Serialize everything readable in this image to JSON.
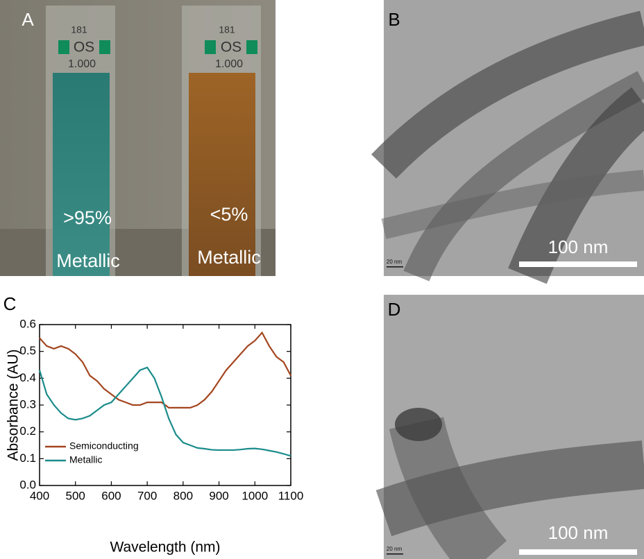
{
  "chart_data": {
    "type": "line",
    "x": [
      400,
      420,
      440,
      460,
      480,
      500,
      520,
      540,
      560,
      580,
      600,
      620,
      640,
      660,
      680,
      700,
      720,
      740,
      760,
      780,
      800,
      820,
      840,
      860,
      880,
      900,
      920,
      940,
      960,
      980,
      1000,
      1020,
      1040,
      1060,
      1080,
      1100
    ],
    "series": [
      {
        "name": "Semiconducting",
        "color": "#a3451f",
        "values": [
          0.55,
          0.52,
          0.51,
          0.52,
          0.51,
          0.49,
          0.46,
          0.41,
          0.39,
          0.36,
          0.34,
          0.32,
          0.31,
          0.3,
          0.3,
          0.31,
          0.31,
          0.31,
          0.29,
          0.29,
          0.29,
          0.29,
          0.3,
          0.32,
          0.35,
          0.39,
          0.43,
          0.46,
          0.49,
          0.52,
          0.54,
          0.57,
          0.52,
          0.48,
          0.46,
          0.41
        ]
      },
      {
        "name": "Metallic",
        "color": "#1b8b8b",
        "values": [
          0.43,
          0.34,
          0.3,
          0.27,
          0.25,
          0.245,
          0.25,
          0.26,
          0.28,
          0.3,
          0.31,
          0.34,
          0.37,
          0.4,
          0.43,
          0.44,
          0.4,
          0.33,
          0.25,
          0.19,
          0.16,
          0.15,
          0.14,
          0.137,
          0.133,
          0.132,
          0.132,
          0.132,
          0.134,
          0.137,
          0.138,
          0.135,
          0.13,
          0.125,
          0.118,
          0.11
        ]
      }
    ],
    "xlabel": "Wavelength (nm)",
    "ylabel": "Absorbance (AU)",
    "xlim": [
      400,
      1100
    ],
    "ylim": [
      0,
      0.6
    ],
    "xticks": [
      400,
      500,
      600,
      700,
      800,
      900,
      1000,
      1100
    ],
    "yticks": [
      {
        "value": 0,
        "label": "0.0"
      },
      0.1,
      0.2,
      0.3,
      0.4,
      0.5,
      0.6
    ],
    "legend": "lower left"
  },
  "panels": {
    "a": {
      "label": "A",
      "cuvettes": [
        {
          "marks": [
            "181",
            "OS",
            "1.000"
          ],
          "purity": ">95%",
          "kind": "Metallic"
        },
        {
          "marks": [
            "181",
            "OS",
            "1.000"
          ],
          "purity": "<5%",
          "kind": "Metallic"
        }
      ]
    },
    "b": {
      "label": "B",
      "scale_bar": "100 nm",
      "inset_scale": "20 nm"
    },
    "c": {
      "label": "C"
    },
    "d": {
      "label": "D",
      "scale_bar": "100 nm",
      "inset_scale": "20 nm"
    }
  }
}
